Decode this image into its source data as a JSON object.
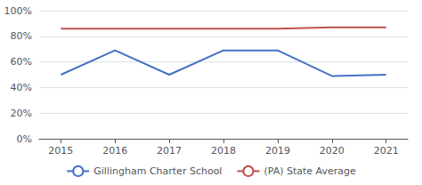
{
  "chart_data": {
    "type": "line",
    "x": [
      2015,
      2016,
      2017,
      2018,
      2019,
      2020,
      2021
    ],
    "series": [
      {
        "name": "Gillingham Charter School",
        "color": "#4472c4",
        "values": [
          50,
          69,
          50,
          69,
          69,
          49,
          50
        ]
      },
      {
        "name": "(PA) State Average",
        "color": "#c0504d",
        "values": [
          86,
          86,
          86,
          86,
          86,
          87,
          87
        ]
      }
    ],
    "xlim": [
      2014.6,
      2021.4
    ],
    "xticks": [
      2015,
      2016,
      2017,
      2018,
      2019,
      2020,
      2021
    ],
    "ylim": [
      0,
      100
    ],
    "yticks": [
      {
        "value": 0,
        "label": "0%"
      },
      {
        "value": 20,
        "label": "20%"
      },
      {
        "value": 40,
        "label": "40%"
      },
      {
        "value": 60,
        "label": "60%"
      },
      {
        "value": 80,
        "label": "80%"
      },
      {
        "value": 100,
        "label": "100%"
      }
    ],
    "grid": true,
    "legend": "bottom"
  }
}
